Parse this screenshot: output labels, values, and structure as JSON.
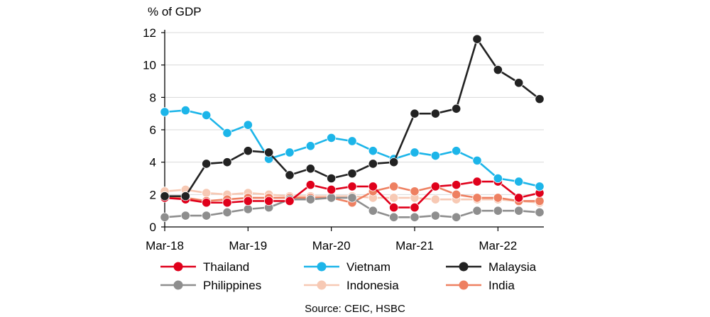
{
  "chart_data": {
    "type": "line",
    "ylabel": "% of GDP",
    "ylim": [
      0,
      12
    ],
    "yticks": [
      0,
      2,
      4,
      6,
      8,
      10,
      12
    ],
    "xlabels": [
      "Mar-18",
      "Mar-19",
      "Mar-20",
      "Mar-21",
      "Mar-22"
    ],
    "xlabel_positions": [
      0,
      4,
      8,
      12,
      16
    ],
    "x_count": 19,
    "grid": "horizontal",
    "legend_position": "bottom",
    "source": "Source: CEIC, HSBC",
    "series": [
      {
        "name": "Thailand",
        "color": "#e0001b",
        "values": [
          1.8,
          1.7,
          1.5,
          1.5,
          1.6,
          1.6,
          1.6,
          2.6,
          2.3,
          2.5,
          2.5,
          1.2,
          1.2,
          2.5,
          2.6,
          2.8,
          2.8,
          1.8,
          2.1
        ]
      },
      {
        "name": "Vietnam",
        "color": "#1cb5e9",
        "values": [
          7.1,
          7.2,
          6.9,
          5.8,
          6.3,
          4.2,
          4.6,
          5.0,
          5.5,
          5.3,
          4.7,
          4.2,
          4.6,
          4.4,
          4.7,
          4.1,
          3.0,
          2.8,
          2.5
        ]
      },
      {
        "name": "Malaysia",
        "color": "#222222",
        "values": [
          1.9,
          1.9,
          3.9,
          4.0,
          4.7,
          4.6,
          3.2,
          3.6,
          3.0,
          3.3,
          3.9,
          4.0,
          7.0,
          7.0,
          7.3,
          11.6,
          9.7,
          8.9,
          7.9
        ]
      },
      {
        "name": "Philippines",
        "color": "#8e8e8e",
        "values": [
          0.6,
          0.7,
          0.7,
          0.9,
          1.1,
          1.2,
          1.7,
          1.7,
          1.8,
          1.8,
          1.0,
          0.6,
          0.6,
          0.7,
          0.6,
          1.0,
          1.0,
          1.0,
          0.9
        ]
      },
      {
        "name": "Indonesia",
        "color": "#f7c9b4",
        "values": [
          2.2,
          2.3,
          2.1,
          2.0,
          2.1,
          2.0,
          1.9,
          1.9,
          1.9,
          1.9,
          1.8,
          1.8,
          1.8,
          1.7,
          1.7,
          1.7,
          1.7,
          1.6,
          1.5
        ]
      },
      {
        "name": "India",
        "color": "#ee8061",
        "values": [
          1.8,
          1.8,
          1.6,
          1.7,
          1.8,
          1.8,
          1.8,
          1.8,
          1.8,
          1.5,
          2.2,
          2.5,
          2.2,
          2.5,
          2.0,
          1.8,
          1.8,
          1.6,
          1.6
        ]
      }
    ]
  }
}
